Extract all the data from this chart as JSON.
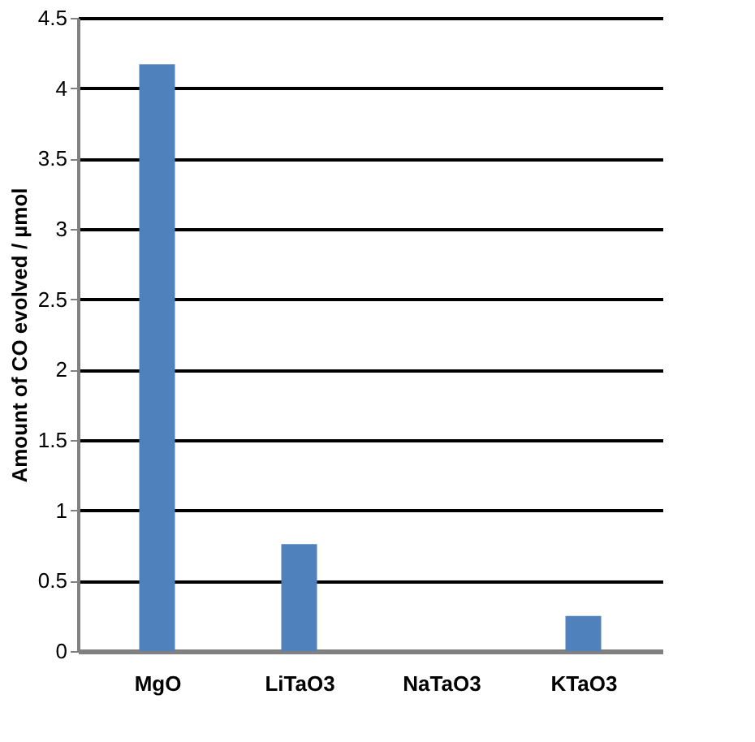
{
  "chart_data": {
    "type": "bar",
    "ylabel": "Amount of CO evolved / µmol",
    "categories": [
      "MgO",
      "LiTaO3",
      "NaTaO3",
      "KTaO3"
    ],
    "values": [
      4.17,
      0.76,
      0,
      0.25
    ],
    "color": "#4f81bd",
    "ylim": [
      0,
      4.5
    ],
    "yticks": [
      0,
      0.5,
      1,
      1.5,
      2,
      2.5,
      3,
      3.5,
      4,
      4.5
    ],
    "grid": "y"
  }
}
